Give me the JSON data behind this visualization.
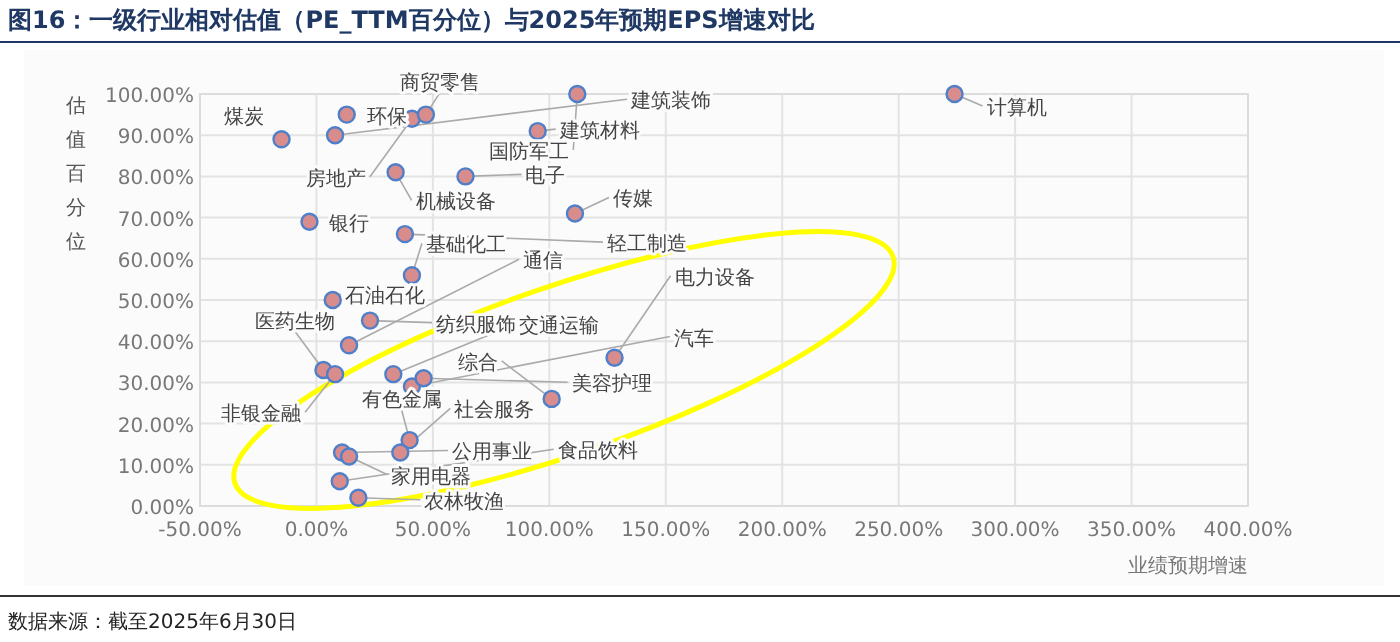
{
  "chart_data": {
    "type": "scatter",
    "title": "图16：一级行业相对估值（PE_TTM百分位）与2025年预期EPS增速对比",
    "xlabel": "业绩预期增速",
    "ylabel": "估值百分位",
    "color": "#d98c8c",
    "marker": "circle",
    "grid": true,
    "xlim": [
      -50,
      400
    ],
    "ylim": [
      0,
      100
    ],
    "xticks": [
      {
        "value": -50,
        "label": "-50.00%"
      },
      {
        "value": 0,
        "label": "0.00%"
      },
      {
        "value": 50,
        "label": "50.00%"
      },
      {
        "value": 100,
        "label": "100.00%"
      },
      {
        "value": 150,
        "label": "150.00%"
      },
      {
        "value": 200,
        "label": "200.00%"
      },
      {
        "value": 250,
        "label": "250.00%"
      },
      {
        "value": 300,
        "label": "300.00%"
      },
      {
        "value": 350,
        "label": "350.00%"
      },
      {
        "value": 400,
        "label": "400.00%"
      }
    ],
    "yticks": [
      {
        "value": 0,
        "label": "0.00%"
      },
      {
        "value": 10,
        "label": "10.00%"
      },
      {
        "value": 20,
        "label": "20.00%"
      },
      {
        "value": 30,
        "label": "30.00%"
      },
      {
        "value": 40,
        "label": "40.00%"
      },
      {
        "value": 50,
        "label": "50.00%"
      },
      {
        "value": 60,
        "label": "60.00%"
      },
      {
        "value": 70,
        "label": "70.00%"
      },
      {
        "value": 80,
        "label": "80.00%"
      },
      {
        "value": 90,
        "label": "90.00%"
      },
      {
        "value": 100,
        "label": "100.00%"
      }
    ],
    "x": [
      -15,
      8,
      13,
      41,
      47,
      112,
      95,
      34,
      64,
      111,
      -3,
      38,
      41,
      7,
      274,
      23,
      14,
      3,
      8,
      33,
      41,
      46,
      128,
      101,
      40,
      11,
      14,
      36,
      10,
      18
    ],
    "values": [
      89,
      90,
      95,
      94,
      95,
      100,
      91,
      81,
      80,
      71,
      69,
      66,
      56,
      50,
      100,
      45,
      39,
      33,
      32,
      32,
      29,
      31,
      36,
      26,
      16,
      13,
      12,
      13,
      6,
      2
    ],
    "annotations": [
      {
        "text": "煤炭",
        "x": -15,
        "y": 89
      },
      {
        "text": "建筑装饰",
        "x": 8,
        "y": 90
      },
      {
        "text": "环保",
        "x": 13,
        "y": 95
      },
      {
        "text": "房地产",
        "x": 41,
        "y": 94
      },
      {
        "text": "商贸零售",
        "x": 47,
        "y": 95
      },
      {
        "text": "国防军工",
        "x": 112,
        "y": 100
      },
      {
        "text": "建筑材料",
        "x": 95,
        "y": 91
      },
      {
        "text": "机械设备",
        "x": 34,
        "y": 81
      },
      {
        "text": "电子",
        "x": 64,
        "y": 80
      },
      {
        "text": "传媒",
        "x": 111,
        "y": 71
      },
      {
        "text": "银行",
        "x": -3,
        "y": 69
      },
      {
        "text": "轻工制造",
        "x": 38,
        "y": 66
      },
      {
        "text": "基础化工",
        "x": 41,
        "y": 56
      },
      {
        "text": "石油石化",
        "x": 7,
        "y": 50
      },
      {
        "text": "计算机",
        "x": 274,
        "y": 100
      },
      {
        "text": "纺织服饰",
        "x": 23,
        "y": 45
      },
      {
        "text": "通信",
        "x": 14,
        "y": 39
      },
      {
        "text": "医药生物",
        "x": 3,
        "y": 33
      },
      {
        "text": "非银金融",
        "x": 8,
        "y": 32
      },
      {
        "text": "交通运输",
        "x": 33,
        "y": 32
      },
      {
        "text": "汽车",
        "x": 41,
        "y": 29
      },
      {
        "text": "美容护理",
        "x": 46,
        "y": 31
      },
      {
        "text": "电力设备",
        "x": 128,
        "y": 36
      },
      {
        "text": "综合",
        "x": 101,
        "y": 26
      },
      {
        "text": "有色金属",
        "x": 40,
        "y": 16
      },
      {
        "text": "公用事业",
        "x": 11,
        "y": 13
      },
      {
        "text": "家用电器",
        "x": 14,
        "y": 12
      },
      {
        "text": "社会服务",
        "x": 36,
        "y": 13
      },
      {
        "text": "食品饮料",
        "x": 10,
        "y": 6
      },
      {
        "text": "农林牧渔",
        "x": 18,
        "y": 2
      },
      "数据来源：截至2025年6月30日"
    ]
  }
}
